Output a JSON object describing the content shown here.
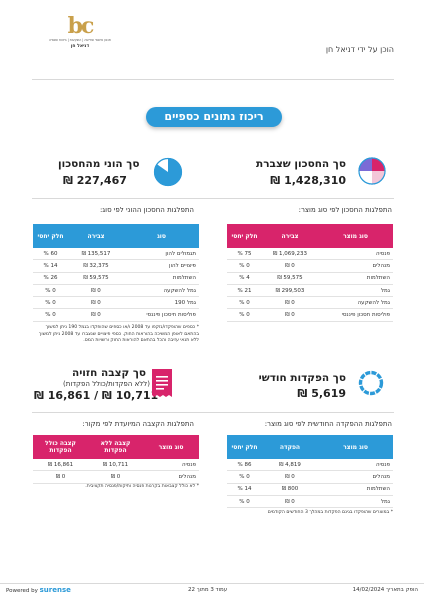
{
  "header": {
    "logo_mark": "bc",
    "logo_tagline": "תכנון פיננסי ופרישה | השקעות | ביטוח ופנסיה",
    "logo_name": "דניאל חן",
    "prepared_by": "הוכן על ידי דניאל חן"
  },
  "title": "ריכוז נתונים כספיים",
  "savings_total": {
    "label": "סך החסכון שצברת",
    "value": "1,428,310 ₪"
  },
  "balance_total": {
    "label": "סך הוני מהחסכון",
    "value": "227,467 ₪",
    "pie_fraction": 0.16
  },
  "savings_table": {
    "title": "התפלגות החסכון לפי סוג מוצר:",
    "headers": [
      "סוג מוצר",
      "צבירה",
      "חלק יחסי"
    ],
    "rows": [
      [
        "פנסיה",
        "1,069,233 ₪",
        "75 %"
      ],
      [
        "מנהלים",
        "0 ₪",
        "0 %"
      ],
      [
        "השתלמות",
        "59,575 ₪",
        "4 %"
      ],
      [
        "גמל",
        "299,503 ₪",
        "21 %"
      ],
      [
        "גמל להשקעה",
        "0 ₪",
        "0 %"
      ],
      [
        "פוליסות חסכון פיננסי",
        "0 ₪",
        "0 %"
      ]
    ]
  },
  "balance_table": {
    "title": "התפלגות החסכון ההוני לפי סוג:",
    "headers": [
      "סוג",
      "צבירה",
      "חלק יחסי"
    ],
    "rows": [
      [
        "תגמולים להון",
        "135,517 ₪",
        "60 %"
      ],
      [
        "פיצויים להון",
        "32,375 ₪",
        "14 %"
      ],
      [
        "השתלמות",
        "59,575 ₪",
        "26 %"
      ],
      [
        "גמל להשקעה",
        "0 ₪",
        "0 %"
      ],
      [
        "גמל 190",
        "0 ₪",
        "0 %"
      ],
      [
        "פוליסות חיסכון פיננסי",
        "0 ₪",
        "0 %"
      ]
    ],
    "note": "* כספים שהופקדו/נזקפו עד 2008 ו/או כספים שהופקדו בגמל 190 ניתן למשוך בהתאם לאופן המשיכה בהוראות החוק. כספי פיצויים שנצברו עד 2008 ניתן למשוך ללא תנאי עזיבה והכל בהתאם להוראות החוק ורשויות המס."
  },
  "monthly_deposits": {
    "label": "סך הפקדות חודשי",
    "value": "5,619 ₪"
  },
  "expected_pension": {
    "label": "סך קצבה חזויה",
    "sub": "(ללא הפקדות/כולל הפקדות)",
    "value": "10,711 ₪ / 16,861 ₪"
  },
  "deposits_table": {
    "title": "התפלגות ההפקדה החודשית לפי סוג מוצר:",
    "headers": [
      "סוג מוצר",
      "הפקדה",
      "חלק יחסי"
    ],
    "rows": [
      [
        "פנסיה",
        "4,819 ₪",
        "86 %"
      ],
      [
        "מנהלים",
        "0 ₪",
        "0 %"
      ],
      [
        "השתלמות",
        "800 ₪",
        "14 %"
      ],
      [
        "גמל",
        "0 ₪",
        "0 %"
      ]
    ],
    "note": "* במוצרים שהופקדו בגינם הפקדות במהלך 3 החודשים הקודמים"
  },
  "pension_table": {
    "title": "התפלגות הקצבה המיועדת לפי מקור:",
    "headers": [
      "סוג מוצר",
      "קצבה ללא הפקדות",
      "קצבה כולל הפקדות"
    ],
    "rows": [
      [
        "פנסיה",
        "10,711 ₪",
        "16,861 ₪"
      ],
      [
        "מנהלים",
        "0 ₪",
        "0 ₪"
      ]
    ],
    "note": "* לא כולל קצבאות בקרנות פנסיה ותיקות/פנסיה תקציבית."
  },
  "footer": {
    "powered_by": "Powered by",
    "brand": "surense",
    "page": "עמוד 3 מתוך 22",
    "date": "הופק בתאריך 14/02/2024"
  },
  "colors": {
    "pink": "#d8246b",
    "blue": "#2c9ad8",
    "gold": "#c9a04b"
  }
}
